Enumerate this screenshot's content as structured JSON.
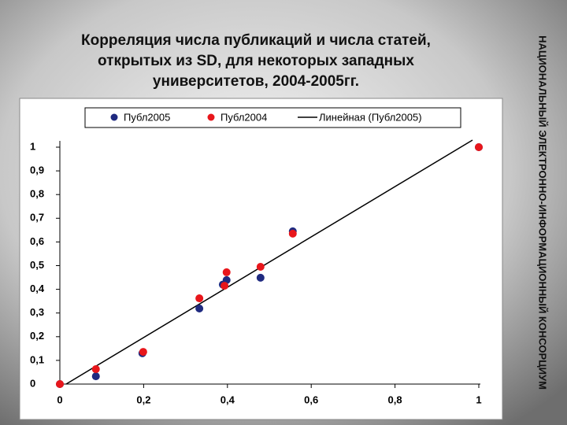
{
  "chart_data": {
    "type": "scatter",
    "title": [
      "Корреляция числа публикаций и числа статей,",
      "открытых из SD, для  некоторых западных",
      "университетов, 2004-2005гг."
    ],
    "series": [
      {
        "name": "Публ2005",
        "color": "#1f2a80",
        "x": [
          0,
          0.086,
          0.197,
          0.333,
          0.389,
          0.398,
          0.479,
          0.556,
          1
        ],
        "values": [
          0,
          0.033,
          0.13,
          0.319,
          0.42,
          0.439,
          0.449,
          0.645,
          1
        ]
      },
      {
        "name": "Публ2004",
        "color": "#e8161b",
        "x": [
          0,
          0.086,
          0.199,
          0.333,
          0.393,
          0.398,
          0.479,
          0.556,
          1
        ],
        "values": [
          0,
          0.063,
          0.136,
          0.362,
          0.415,
          0.472,
          0.495,
          0.635,
          1
        ]
      }
    ],
    "trendline": {
      "name": "Линейная (Публ2005)",
      "color": "#000000",
      "x": [
        0.015,
        0.985
      ],
      "values": [
        0,
        1.03
      ]
    },
    "xlim": [
      0,
      1
    ],
    "ylim": [
      0,
      1
    ],
    "xticks": [
      0,
      {
        "value": 0.2,
        "label": "0,2"
      },
      {
        "value": 0.4,
        "label": "0,4"
      },
      {
        "value": 0.6,
        "label": "0,6"
      },
      {
        "value": 0.8,
        "label": "0,8"
      },
      1
    ],
    "yticks": [
      0,
      {
        "value": 0.1,
        "label": "0,1"
      },
      {
        "value": 0.2,
        "label": "0,2"
      },
      {
        "value": 0.3,
        "label": "0,3"
      },
      {
        "value": 0.4,
        "label": "0,4"
      },
      {
        "value": 0.5,
        "label": "0,5"
      },
      {
        "value": 0.6,
        "label": "0,6"
      },
      {
        "value": 0.7,
        "label": "0,7"
      },
      {
        "value": 0.8,
        "label": "0,8"
      },
      {
        "value": 0.9,
        "label": "0,9"
      },
      1
    ],
    "grid": false
  },
  "side_banner": "НАЦИОНАЛЬНЫЙ ЭЛЕКТРОННО-ИНФОРМАЦИОННЫЙ КОНСОРЦИУМ"
}
